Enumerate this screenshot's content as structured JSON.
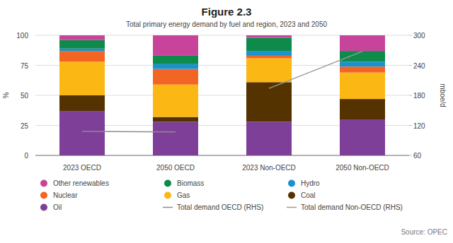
{
  "chart_data": {
    "type": "bar",
    "title": "Figure 2.3",
    "subtitle": "Total primary energy demand by fuel and region, 2023 and 2050",
    "y_label": "%",
    "y2_label": "mboe/d",
    "source": "Source: OPEC",
    "stacked": true,
    "grid": true,
    "legend": "bottom",
    "categories": [
      "2023 OECD",
      "2050 OECD",
      "2023 Non-OECD",
      "2050 Non-OECD"
    ],
    "ylim": [
      0,
      100
    ],
    "yticks": [
      0,
      25,
      50,
      75,
      100
    ],
    "y2lim": [
      60,
      300
    ],
    "y2ticks": [
      60,
      120,
      180,
      240,
      300
    ],
    "series": [
      {
        "name": "Oil",
        "type": "bar",
        "color": "#7e3f98",
        "values": [
          37,
          28,
          28,
          30
        ]
      },
      {
        "name": "Coal",
        "type": "bar",
        "color": "#553300",
        "values": [
          13,
          4,
          33,
          17
        ]
      },
      {
        "name": "Gas",
        "type": "bar",
        "color": "#fbb714",
        "values": [
          28,
          27,
          20,
          22
        ]
      },
      {
        "name": "Nuclear",
        "type": "bar",
        "color": "#f26522",
        "values": [
          9,
          13,
          2,
          5
        ]
      },
      {
        "name": "Hydro",
        "type": "bar",
        "color": "#1c91d0",
        "values": [
          2,
          4,
          4,
          4
        ]
      },
      {
        "name": "Biomass",
        "type": "bar",
        "color": "#0e8a4a",
        "values": [
          7,
          7,
          11,
          9
        ]
      },
      {
        "name": "Other renewables",
        "type": "bar",
        "color": "#c8449a",
        "values": [
          4,
          17,
          2,
          13
        ]
      },
      {
        "name": "Total demand OECD (RHS)",
        "type": "line",
        "axis": "y2",
        "color": "#8c8c8c",
        "values": [
          108,
          107,
          null,
          null
        ]
      },
      {
        "name": "Total demand Non-OECD (RHS)",
        "type": "line",
        "axis": "y2",
        "color": "#9a9a9a",
        "values": [
          null,
          null,
          194,
          268
        ]
      }
    ]
  }
}
